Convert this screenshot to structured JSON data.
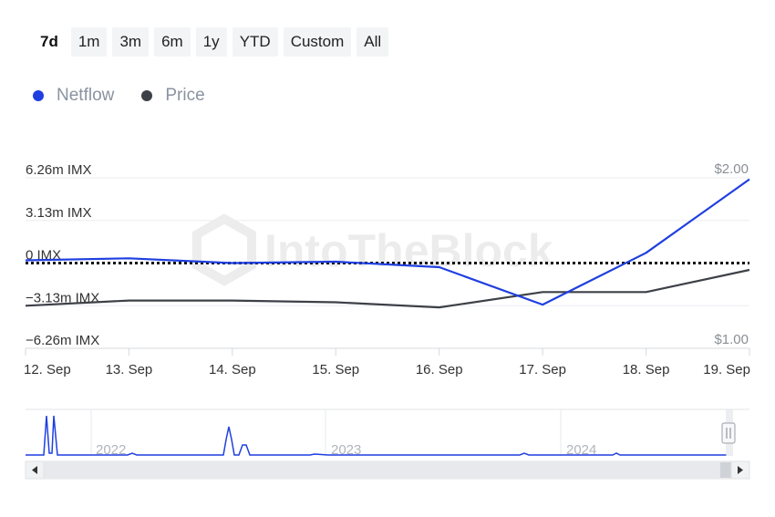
{
  "range_buttons": [
    {
      "label": "7d",
      "active": true
    },
    {
      "label": "1m",
      "active": false
    },
    {
      "label": "3m",
      "active": false
    },
    {
      "label": "6m",
      "active": false
    },
    {
      "label": "1y",
      "active": false
    },
    {
      "label": "YTD",
      "active": false
    },
    {
      "label": "Custom",
      "active": false
    },
    {
      "label": "All",
      "active": false
    }
  ],
  "legend": [
    {
      "label": "Netflow",
      "color": "#1f3fe0"
    },
    {
      "label": "Price",
      "color": "#3d4147"
    }
  ],
  "watermark": "IntoTheBlock",
  "chart_data": {
    "type": "line",
    "x": [
      "12. Sep",
      "13. Sep",
      "14. Sep",
      "15. Sep",
      "16. Sep",
      "17. Sep",
      "18. Sep",
      "19. Sep"
    ],
    "y_left": {
      "ticks": [
        "6.26m IMX",
        "3.13m IMX",
        "0 IMX",
        "−3.13m IMX",
        "−6.26m IMX"
      ],
      "range": [
        -6.26,
        6.26
      ],
      "unit": "m IMX"
    },
    "y_right": {
      "ticks": [
        "$2.00",
        "$1.00"
      ],
      "range": [
        1.0,
        2.0
      ]
    },
    "zero_line": "dotted",
    "grid": true,
    "series": [
      {
        "name": "Netflow",
        "color": "#1f3fe0",
        "axis": "left",
        "values": [
          0.2,
          0.35,
          0.0,
          0.1,
          -0.3,
          -3.05,
          0.75,
          6.15
        ]
      },
      {
        "name": "Price",
        "color": "#3d4147",
        "axis": "right",
        "values": [
          1.25,
          1.28,
          1.28,
          1.27,
          1.24,
          1.33,
          1.33,
          1.46
        ]
      }
    ],
    "navigator": {
      "year_labels": [
        "2022",
        "2023",
        "2024"
      ]
    }
  }
}
